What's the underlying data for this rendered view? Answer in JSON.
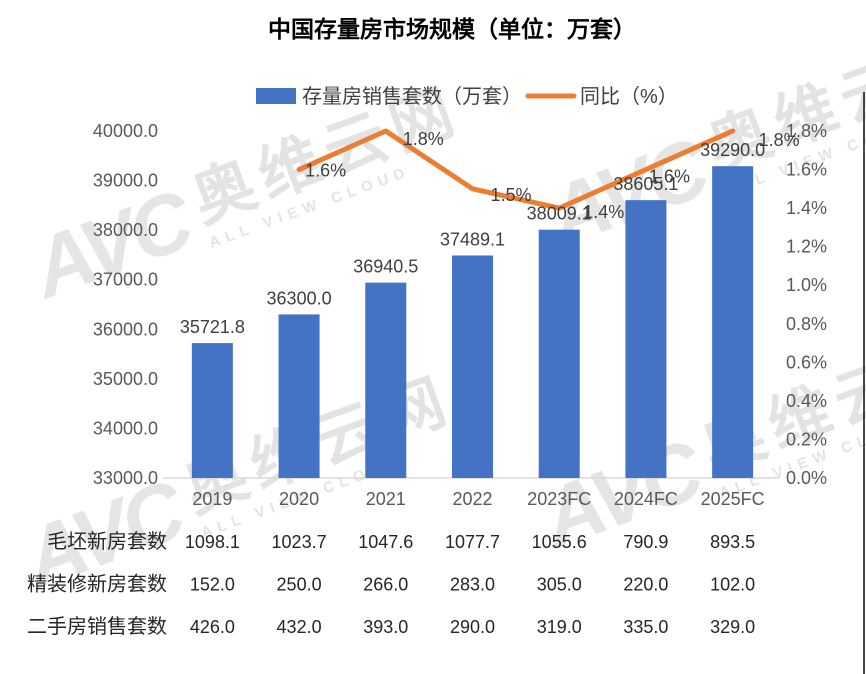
{
  "title": "中国存量房市场规模（单位：万套）",
  "legend": {
    "bar_label": "存量房销售套数（万套）",
    "line_label": "同比（%）"
  },
  "watermark": {
    "logo": "AVC",
    "cn": "奥维云网",
    "en": "ALL VIEW CLOUD"
  },
  "chart_data": {
    "type": "bar",
    "title": "中国存量房市场规模（单位：万套）",
    "legend_position": "top",
    "grid": false,
    "categories": [
      "2019",
      "2020",
      "2021",
      "2022",
      "2023FC",
      "2024FC",
      "2025FC"
    ],
    "series": [
      {
        "name": "存量房销售套数（万套）",
        "type": "bar",
        "axis": "left",
        "values": [
          35721.8,
          36300.0,
          36940.5,
          37489.1,
          38009.1,
          38605.1,
          39290.0
        ],
        "labels": [
          "35721.8",
          "36300.0",
          "36940.5",
          "37489.1",
          "38009.1",
          "38605.1",
          "39290.0"
        ]
      },
      {
        "name": "同比（%）",
        "type": "line",
        "axis": "right",
        "values": [
          null,
          1.6,
          1.8,
          1.5,
          1.4,
          1.6,
          1.8
        ],
        "labels": [
          null,
          "1.6%",
          "1.8%",
          "1.5%",
          "1.4%",
          "1.6%",
          "1.8%"
        ]
      }
    ],
    "left_axis": {
      "min": 33000,
      "max": 40000,
      "step": 1000,
      "tick_labels": [
        "33000.0",
        "34000.0",
        "35000.0",
        "36000.0",
        "37000.0",
        "38000.0",
        "39000.0",
        "40000.0"
      ]
    },
    "right_axis": {
      "min": 0.0,
      "max": 1.8,
      "step": 0.2,
      "tick_labels": [
        "0.0%",
        "0.2%",
        "0.4%",
        "0.6%",
        "0.8%",
        "1.0%",
        "1.2%",
        "1.4%",
        "1.6%",
        "1.8%"
      ]
    },
    "colors": {
      "bar": "#4472C4",
      "line": "#ED7D31"
    }
  },
  "table": {
    "rows": [
      {
        "label": "毛坯新房套数",
        "values": [
          "1098.1",
          "1023.7",
          "1047.6",
          "1077.7",
          "1055.6",
          "790.9",
          "893.5"
        ]
      },
      {
        "label": "精装修新房套数",
        "values": [
          "152.0",
          "250.0",
          "266.0",
          "283.0",
          "305.0",
          "220.0",
          "102.0"
        ]
      },
      {
        "label": "二手房销售套数",
        "values": [
          "426.0",
          "432.0",
          "393.0",
          "290.0",
          "319.0",
          "335.0",
          "329.0"
        ]
      }
    ]
  }
}
